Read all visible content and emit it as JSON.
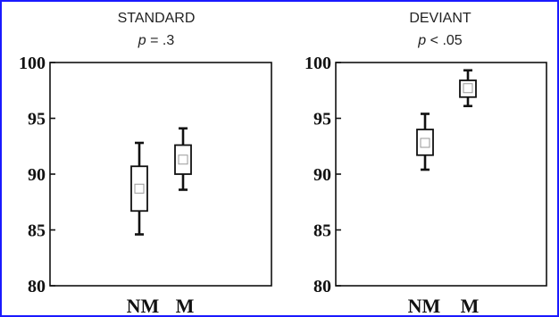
{
  "chart_data": [
    {
      "type": "box",
      "title": "STANDARD",
      "subtitle": {
        "prefix": "p",
        "text": " = .3"
      },
      "categories": [
        "NM",
        "M"
      ],
      "ylim": [
        80,
        100
      ],
      "yticks": [
        80,
        85,
        90,
        95,
        100
      ],
      "boxes": [
        {
          "category": "NM",
          "whisker_low": 84.6,
          "q1": 86.7,
          "mean": 88.7,
          "q3": 90.7,
          "whisker_high": 92.8
        },
        {
          "category": "M",
          "whisker_low": 88.6,
          "q1": 90.0,
          "mean": 91.3,
          "q3": 92.6,
          "whisker_high": 94.1
        }
      ]
    },
    {
      "type": "box",
      "title": "DEVIANT",
      "subtitle": {
        "prefix": "p",
        "text": " < .05"
      },
      "categories": [
        "NM",
        "M"
      ],
      "ylim": [
        80,
        100
      ],
      "yticks": [
        80,
        85,
        90,
        95,
        100
      ],
      "boxes": [
        {
          "category": "NM",
          "whisker_low": 90.4,
          "q1": 91.7,
          "mean": 92.8,
          "q3": 94.0,
          "whisker_high": 95.4
        },
        {
          "category": "M",
          "whisker_low": 96.1,
          "q1": 96.9,
          "mean": 97.7,
          "q3": 98.4,
          "whisker_high": 99.3
        }
      ]
    }
  ],
  "colors": {
    "frame": "#1a1aff",
    "ink": "#111111"
  }
}
